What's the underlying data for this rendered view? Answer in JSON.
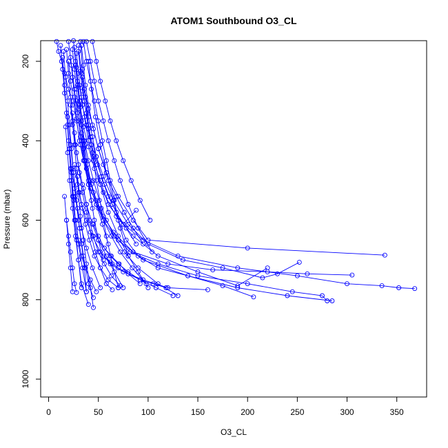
{
  "chart_data": {
    "type": "line",
    "title": "ATOM1 Southbound O3_CL",
    "xlabel": "O3_CL",
    "ylabel": "Pressure (mbar)",
    "xlim": [
      -8,
      380
    ],
    "ylim": [
      1045,
      148
    ],
    "y_reversed": true,
    "grid": false,
    "x_ticks": [
      0,
      50,
      100,
      150,
      200,
      250,
      300,
      350
    ],
    "y_ticks": [
      200,
      400,
      600,
      800,
      1000
    ],
    "series_color": "#0000ff",
    "marker": "open-circle",
    "series": [
      {
        "x": [
          24,
          26,
          28,
          30,
          33,
          35,
          38,
          42,
          48,
          55,
          66,
          82,
          110,
          150,
          200,
          245,
          275,
          280
        ],
        "y": [
          170,
          220,
          270,
          320,
          380,
          420,
          470,
          520,
          560,
          600,
          640,
          680,
          710,
          740,
          760,
          780,
          790,
          803
        ]
      },
      {
        "x": [
          28,
          30,
          33,
          36,
          40,
          45,
          52,
          60,
          75,
          95,
          130,
          190,
          250,
          300,
          335,
          352,
          368
        ],
        "y": [
          180,
          230,
          290,
          340,
          400,
          450,
          500,
          560,
          610,
          650,
          690,
          720,
          740,
          760,
          765,
          770,
          772
        ]
      },
      {
        "x": [
          33,
          35,
          37,
          40,
          44,
          50,
          58,
          70,
          85,
          100,
          200,
          338
        ],
        "y": [
          160,
          210,
          260,
          310,
          360,
          420,
          480,
          540,
          600,
          650,
          670,
          688
        ]
      },
      {
        "x": [
          30,
          32,
          34,
          38,
          42,
          48,
          55,
          65,
          80,
          100,
          135,
          175,
          215,
          230,
          252
        ],
        "y": [
          175,
          225,
          275,
          330,
          390,
          440,
          490,
          550,
          610,
          660,
          700,
          720,
          745,
          735,
          706
        ]
      },
      {
        "x": [
          22,
          24,
          26,
          28,
          31,
          35,
          40,
          50,
          65,
          85,
          120,
          165,
          220,
          260,
          305
        ],
        "y": [
          190,
          240,
          290,
          345,
          400,
          450,
          510,
          570,
          630,
          680,
          710,
          725,
          730,
          735,
          738
        ]
      },
      {
        "x": [
          20,
          22,
          25,
          28,
          32,
          38,
          45,
          55,
          70,
          95,
          140,
          190,
          240,
          285
        ],
        "y": [
          200,
          250,
          300,
          350,
          410,
          470,
          530,
          590,
          650,
          700,
          740,
          770,
          790,
          803
        ]
      },
      {
        "x": [
          35,
          38,
          42,
          46,
          50,
          54,
          58,
          62,
          66,
          70,
          78,
          90,
          110,
          140,
          175,
          206
        ],
        "y": [
          150,
          200,
          250,
          300,
          350,
          400,
          450,
          500,
          550,
          600,
          650,
          690,
          720,
          740,
          765,
          793
        ]
      },
      {
        "x": [
          26,
          28,
          30,
          32,
          35,
          40,
          46,
          55,
          68,
          85,
          110,
          150,
          190,
          220
        ],
        "y": [
          165,
          215,
          265,
          315,
          365,
          415,
          470,
          530,
          590,
          640,
          690,
          730,
          765,
          720
        ]
      },
      {
        "x": [
          18,
          20,
          22,
          24,
          26,
          28,
          30,
          32,
          35,
          38,
          42,
          45
        ],
        "y": [
          170,
          230,
          290,
          350,
          410,
          470,
          530,
          590,
          650,
          710,
          770,
          820
        ]
      },
      {
        "x": [
          15,
          17,
          19,
          21,
          23,
          25,
          27,
          30,
          33,
          36,
          38
        ],
        "y": [
          175,
          240,
          300,
          360,
          420,
          480,
          540,
          600,
          660,
          720,
          780
        ]
      },
      {
        "x": [
          14,
          16,
          18,
          20,
          22,
          24,
          26,
          28,
          30,
          33,
          40
        ],
        "y": [
          190,
          260,
          330,
          400,
          470,
          540,
          600,
          650,
          700,
          760,
          812
        ]
      },
      {
        "x": [
          12,
          14,
          16,
          19,
          22,
          25,
          28,
          31,
          35,
          40,
          45
        ],
        "y": [
          160,
          220,
          280,
          340,
          410,
          480,
          550,
          620,
          690,
          760,
          795
        ]
      },
      {
        "x": [
          25,
          27,
          29,
          31,
          33,
          35,
          37,
          40,
          43,
          46,
          50,
          55
        ],
        "y": [
          148,
          200,
          250,
          300,
          350,
          400,
          450,
          500,
          550,
          600,
          650,
          700
        ]
      },
      {
        "x": [
          30,
          33,
          36,
          40,
          45,
          52,
          60,
          70,
          80,
          90,
          100
        ],
        "y": [
          160,
          230,
          300,
          370,
          440,
          510,
          580,
          640,
          690,
          730,
          770
        ]
      },
      {
        "x": [
          32,
          34,
          37,
          40,
          44,
          48,
          53,
          58,
          64,
          70
        ],
        "y": [
          150,
          220,
          290,
          360,
          430,
          500,
          570,
          640,
          710,
          770
        ]
      },
      {
        "x": [
          40,
          43,
          47,
          52,
          58,
          65,
          72,
          80
        ],
        "y": [
          200,
          270,
          340,
          410,
          480,
          550,
          620,
          690
        ]
      },
      {
        "x": [
          34,
          37,
          40,
          44,
          48,
          53,
          60,
          68,
          78,
          88
        ],
        "y": [
          240,
          290,
          340,
          390,
          440,
          490,
          540,
          580,
          620,
          660
        ]
      },
      {
        "x": [
          36,
          40,
          45,
          50,
          55,
          60,
          68,
          76,
          85,
          95
        ],
        "y": [
          270,
          320,
          370,
          420,
          460,
          500,
          540,
          580,
          620,
          660
        ]
      },
      {
        "x": [
          31,
          34,
          38,
          43,
          49,
          56,
          64,
          75,
          88
        ],
        "y": [
          260,
          310,
          360,
          410,
          460,
          510,
          560,
          610,
          575
        ]
      },
      {
        "x": [
          28,
          30,
          33,
          37,
          42,
          48,
          55,
          63,
          72,
          84,
          98
        ],
        "y": [
          300,
          350,
          400,
          450,
          500,
          550,
          600,
          640,
          680,
          720,
          760
        ]
      },
      {
        "x": [
          22,
          24,
          27,
          30,
          34,
          38,
          44,
          50,
          58,
          66,
          75
        ],
        "y": [
          310,
          360,
          410,
          460,
          510,
          560,
          610,
          650,
          690,
          730,
          770
        ]
      },
      {
        "x": [
          24,
          26,
          28,
          31,
          34,
          38,
          42,
          47,
          52,
          58,
          64
        ],
        "y": [
          330,
          380,
          430,
          480,
          530,
          580,
          630,
          680,
          720,
          760,
          775
        ]
      },
      {
        "x": [
          19,
          21,
          23,
          25,
          27,
          30,
          34,
          38
        ],
        "y": [
          360,
          420,
          480,
          540,
          600,
          660,
          720,
          780
        ]
      },
      {
        "x": [
          17,
          19,
          21,
          24,
          27,
          30,
          33
        ],
        "y": [
          365,
          430,
          500,
          570,
          640,
          700,
          770
        ]
      },
      {
        "x": [
          16,
          18,
          20,
          22,
          24
        ],
        "y": [
          540,
          600,
          660,
          720,
          780
        ]
      },
      {
        "x": [
          20,
          23,
          26,
          29,
          32,
          36,
          40,
          44
        ],
        "y": [
          150,
          210,
          270,
          330,
          390,
          450,
          510,
          570
        ]
      },
      {
        "x": [
          8,
          10,
          13,
          16,
          20,
          24
        ],
        "y": [
          150,
          175,
          200,
          230,
          270,
          310
        ]
      },
      {
        "x": [
          27,
          29,
          31,
          33,
          36,
          39,
          43,
          48,
          54,
          60
        ],
        "y": [
          210,
          260,
          310,
          360,
          410,
          460,
          510,
          560,
          610,
          660
        ]
      },
      {
        "x": [
          38,
          42,
          46,
          50,
          55,
          60,
          66,
          72,
          80,
          90,
          104
        ],
        "y": [
          150,
          200,
          250,
          300,
          350,
          400,
          450,
          500,
          560,
          620,
          680
        ]
      },
      {
        "x": [
          44,
          48,
          52,
          57,
          62,
          68,
          75,
          83,
          92,
          102
        ],
        "y": [
          150,
          200,
          250,
          300,
          350,
          400,
          450,
          500,
          550,
          600
        ]
      },
      {
        "x": [
          33,
          36,
          40,
          45,
          51,
          58,
          66,
          76,
          90,
          110,
          130
        ],
        "y": [
          350,
          400,
          450,
          500,
          550,
          600,
          640,
          680,
          720,
          760,
          790
        ]
      },
      {
        "x": [
          21,
          23,
          26,
          29,
          33,
          38,
          44,
          52
        ],
        "y": [
          420,
          470,
          520,
          570,
          620,
          670,
          720,
          770
        ]
      },
      {
        "x": [
          26,
          29,
          33,
          38,
          44,
          52,
          62,
          75,
          95,
          120,
          160
        ],
        "y": [
          460,
          510,
          560,
          600,
          640,
          680,
          710,
          730,
          750,
          770,
          775
        ]
      },
      {
        "x": [
          29,
          31,
          34,
          37,
          41,
          46,
          52,
          60,
          70
        ],
        "y": [
          490,
          530,
          570,
          610,
          650,
          690,
          720,
          750,
          770
        ]
      },
      {
        "x": [
          35,
          38,
          41,
          45,
          50,
          56,
          63,
          72
        ],
        "y": [
          520,
          560,
          600,
          640,
          680,
          710,
          740,
          765
        ]
      },
      {
        "x": [
          23,
          25,
          27,
          30,
          33,
          37,
          42,
          48
        ],
        "y": [
          500,
          550,
          600,
          650,
          690,
          720,
          750,
          780
        ]
      },
      {
        "x": [
          18,
          20,
          22,
          24,
          26,
          28
        ],
        "y": [
          600,
          640,
          680,
          720,
          760,
          782
        ]
      },
      {
        "x": [
          45,
          50,
          56,
          62,
          70,
          80,
          92,
          105,
          118
        ],
        "y": [
          610,
          640,
          670,
          690,
          710,
          730,
          750,
          760,
          770
        ]
      },
      {
        "x": [
          50,
          56,
          63,
          71,
          80,
          92
        ],
        "y": [
          650,
          670,
          690,
          710,
          735,
          760
        ]
      },
      {
        "x": [
          55,
          62,
          70,
          80,
          92,
          108,
          125
        ],
        "y": [
          690,
          705,
          720,
          735,
          750,
          770,
          790
        ]
      }
    ]
  }
}
